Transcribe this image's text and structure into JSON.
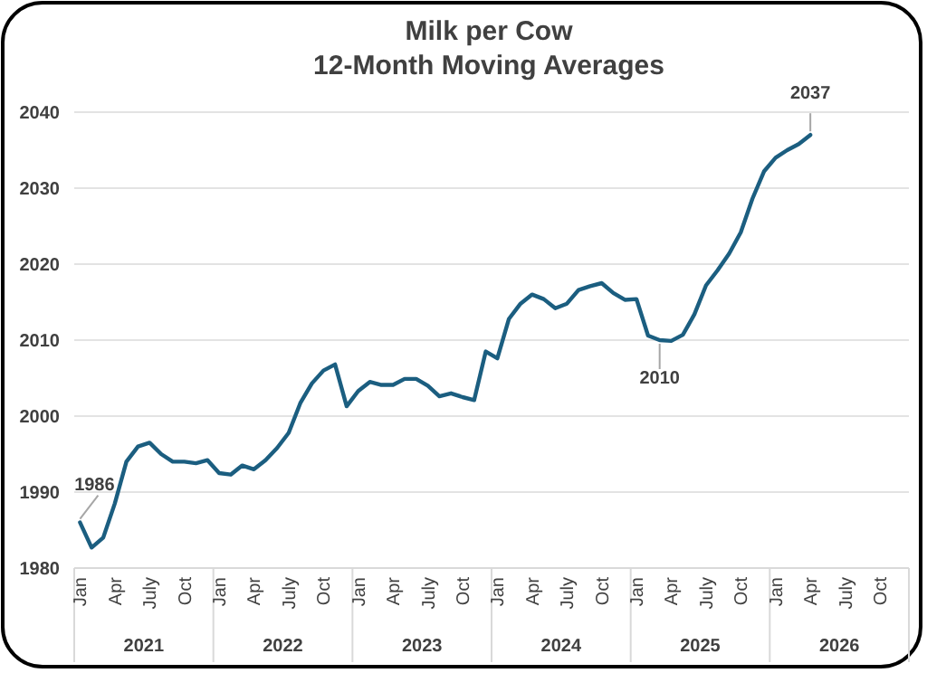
{
  "chart_data": {
    "type": "line",
    "title": "Milk per Cow",
    "subtitle": "12-Month Moving Averages",
    "categories": [
      "Jan",
      null,
      null,
      "Apr",
      null,
      null,
      "July",
      null,
      null,
      "Oct",
      null,
      null,
      "Jan",
      null,
      null,
      "Apr",
      null,
      null,
      "July",
      null,
      null,
      "Oct",
      null,
      null,
      "Jan",
      null,
      null,
      "Apr",
      null,
      null,
      "July",
      null,
      null,
      "Oct",
      null,
      null,
      "Jan",
      null,
      null,
      "Apr",
      null,
      null,
      "July",
      null,
      null,
      "Oct",
      null,
      null,
      "Jan",
      null,
      null,
      "Apr",
      null,
      null,
      "July",
      null,
      null,
      "Oct",
      null,
      null,
      "Jan",
      null,
      null,
      "Apr",
      null,
      null,
      "July",
      null,
      null,
      "Oct",
      null,
      null
    ],
    "series": [
      {
        "color": "#1b5e80",
        "values": [
          1986,
          1982.7,
          1984,
          1988.5,
          1994,
          1996,
          1996.5,
          1995,
          1994,
          1994,
          1993.8,
          1994.2,
          1992.5,
          1992.3,
          1993.5,
          1993,
          1994.2,
          1995.8,
          1997.8,
          2001.7,
          2004.3,
          2006,
          2006.8,
          2001.3,
          2003.3,
          2004.5,
          2004.1,
          2004.1,
          2004.9,
          2004.9,
          2004,
          2002.6,
          2003,
          2002.5,
          2002.1,
          2008.5,
          2007.6,
          2012.8,
          2014.8,
          2016,
          2015.4,
          2014.2,
          2014.8,
          2016.6,
          2017.1,
          2017.5,
          2016.2,
          2015.3,
          2015.4,
          2010.6,
          2010,
          2009.9,
          2010.7,
          2013.4,
          2017.2,
          2019.2,
          2021.4,
          2024.2,
          2028.6,
          2032.2,
          2034,
          2035,
          2035.8,
          2037,
          null,
          null,
          null,
          null,
          null,
          null,
          null,
          null
        ],
        "value_labels": [
          "1986",
          null,
          null,
          null,
          null,
          null,
          null,
          null,
          null,
          null,
          null,
          null,
          null,
          null,
          null,
          null,
          null,
          null,
          null,
          null,
          null,
          null,
          null,
          null,
          null,
          null,
          null,
          null,
          null,
          null,
          null,
          null,
          null,
          null,
          null,
          null,
          null,
          null,
          null,
          null,
          null,
          null,
          null,
          null,
          null,
          null,
          null,
          null,
          null,
          null,
          "2010",
          null,
          null,
          null,
          null,
          null,
          null,
          null,
          null,
          null,
          null,
          null,
          null,
          "2037",
          null,
          null,
          null,
          null,
          null,
          null,
          null,
          null
        ]
      }
    ],
    "annotations": [
      "2021",
      "2022",
      "2023",
      "2024",
      "2025",
      "2026"
    ],
    "ylim": [
      1980,
      2040
    ],
    "yticks": [
      1980,
      1990,
      2000,
      2010,
      2020,
      2030,
      2040
    ],
    "grid": "y"
  }
}
